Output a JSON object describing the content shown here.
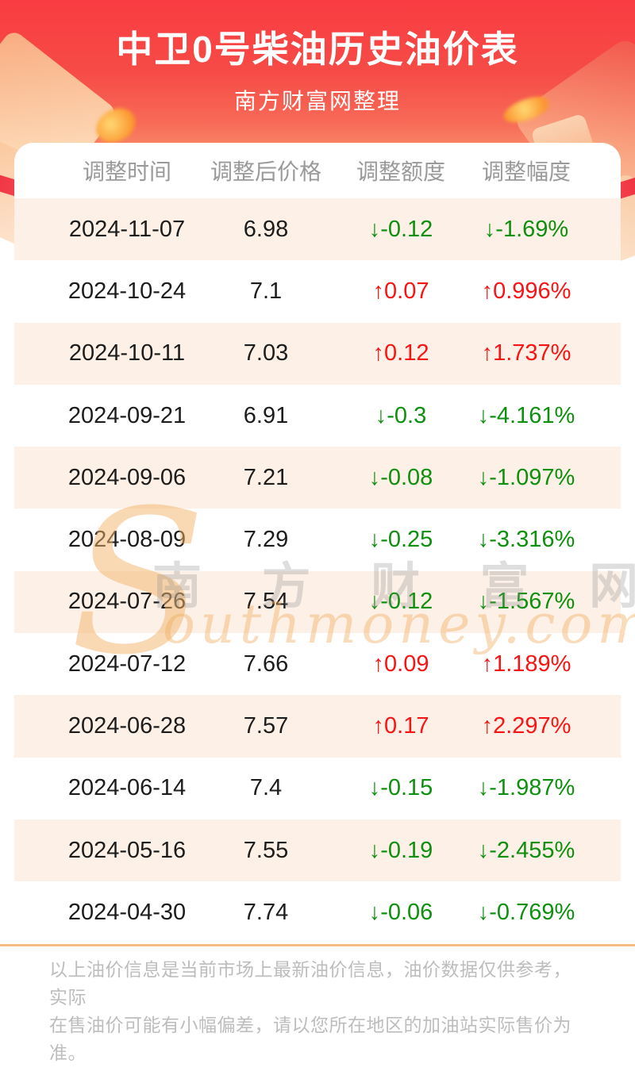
{
  "header": {
    "title": "中卫0号柴油历史油价表",
    "subtitle": "南方财富网整理"
  },
  "table": {
    "columns": [
      "调整时间",
      "调整后价格",
      "调整额度",
      "调整幅度"
    ],
    "rows": [
      {
        "date": "2024-11-07",
        "price": "6.98",
        "change": "↓-0.12",
        "rate": "↓-1.69%",
        "dir": "down"
      },
      {
        "date": "2024-10-24",
        "price": "7.1",
        "change": "↑0.07",
        "rate": "↑0.996%",
        "dir": "up"
      },
      {
        "date": "2024-10-11",
        "price": "7.03",
        "change": "↑0.12",
        "rate": "↑1.737%",
        "dir": "up"
      },
      {
        "date": "2024-09-21",
        "price": "6.91",
        "change": "↓-0.3",
        "rate": "↓-4.161%",
        "dir": "down"
      },
      {
        "date": "2024-09-06",
        "price": "7.21",
        "change": "↓-0.08",
        "rate": "↓-1.097%",
        "dir": "down"
      },
      {
        "date": "2024-08-09",
        "price": "7.29",
        "change": "↓-0.25",
        "rate": "↓-3.316%",
        "dir": "down"
      },
      {
        "date": "2024-07-26",
        "price": "7.54",
        "change": "↓-0.12",
        "rate": "↓-1.567%",
        "dir": "down"
      },
      {
        "date": "2024-07-12",
        "price": "7.66",
        "change": "↑0.09",
        "rate": "↑1.189%",
        "dir": "up"
      },
      {
        "date": "2024-06-28",
        "price": "7.57",
        "change": "↑0.17",
        "rate": "↑2.297%",
        "dir": "up"
      },
      {
        "date": "2024-06-14",
        "price": "7.4",
        "change": "↓-0.15",
        "rate": "↓-1.987%",
        "dir": "down"
      },
      {
        "date": "2024-05-16",
        "price": "7.55",
        "change": "↓-0.19",
        "rate": "↓-2.455%",
        "dir": "down"
      },
      {
        "date": "2024-04-30",
        "price": "7.74",
        "change": "↓-0.06",
        "rate": "↓-0.769%",
        "dir": "down"
      }
    ]
  },
  "chart_data": {
    "type": "table",
    "title": "中卫0号柴油历史油价表",
    "columns": [
      "调整时间",
      "调整后价格",
      "调整额度",
      "调整幅度"
    ],
    "categories": [
      "2024-11-07",
      "2024-10-24",
      "2024-10-11",
      "2024-09-21",
      "2024-09-06",
      "2024-08-09",
      "2024-07-26",
      "2024-07-12",
      "2024-06-28",
      "2024-06-14",
      "2024-05-16",
      "2024-04-30"
    ],
    "series": [
      {
        "name": "调整后价格",
        "values": [
          6.98,
          7.1,
          7.03,
          6.91,
          7.21,
          7.29,
          7.54,
          7.66,
          7.57,
          7.4,
          7.55,
          7.74
        ]
      },
      {
        "name": "调整额度",
        "values": [
          -0.12,
          0.07,
          0.12,
          -0.3,
          -0.08,
          -0.25,
          -0.12,
          0.09,
          0.17,
          -0.15,
          -0.19,
          -0.06
        ]
      },
      {
        "name": "调整幅度(%)",
        "values": [
          -1.69,
          0.996,
          1.737,
          -4.161,
          -1.097,
          -3.316,
          -1.567,
          1.189,
          2.297,
          -1.987,
          -2.455,
          -0.769
        ]
      }
    ]
  },
  "watermark": {
    "initial": "S",
    "cn": "南 方 财 富 网",
    "latin": "outhmoney.com"
  },
  "footer": {
    "lines": [
      "以上油价信息是当前市场上最新油价信息，油价数据仅供参考，实际",
      "在售油价可能有小幅偏差，请以您所在地区的加油站实际售价为准。"
    ]
  },
  "colors": {
    "banner_red": "#f93c42",
    "banner_peach": "#fcc193",
    "row_alt": "#fdf0e6",
    "up_red": "#f81414",
    "down_green": "#0e900e",
    "header_gray": "#9a9a9a",
    "divider_orange": "#f5bd83",
    "footer_gray": "#bdbdbd"
  }
}
